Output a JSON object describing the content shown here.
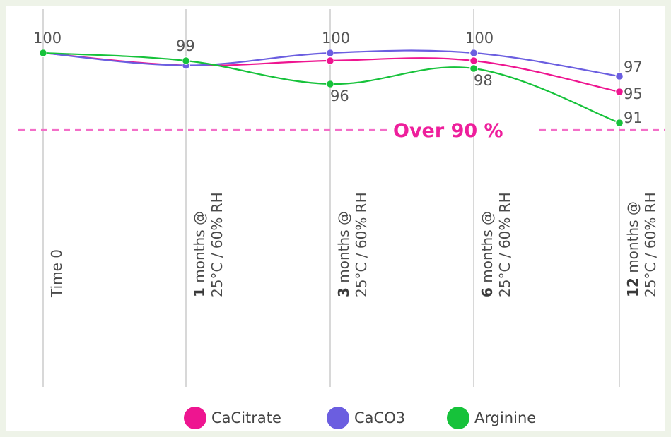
{
  "chart_data": {
    "type": "line",
    "categories": [
      {
        "bold": "",
        "line1": "Time 0",
        "line2": ""
      },
      {
        "bold": "1",
        "line1": " months @",
        "line2": "25°C / 60% RH"
      },
      {
        "bold": "3",
        "line1": " months @",
        "line2": "25°C / 60% RH"
      },
      {
        "bold": "6",
        "line1": " months @",
        "line2": "25°C / 60% RH"
      },
      {
        "bold": "12",
        "line1": " months @",
        "line2": "25°C / 60% RH"
      }
    ],
    "series": [
      {
        "name": "CaCitrate",
        "color": "#ee1590",
        "values": [
          100,
          98.4,
          99,
          99,
          95
        ]
      },
      {
        "name": "CaCO3",
        "color": "#6b5ee0",
        "values": [
          100,
          98.4,
          100,
          100,
          97
        ]
      },
      {
        "name": "Arginine",
        "color": "#16c23a",
        "values": [
          100,
          99,
          96,
          98,
          91
        ]
      }
    ],
    "data_labels": [
      {
        "text": "100",
        "series": "Arginine",
        "index": 0
      },
      {
        "text": "99",
        "series": "Arginine",
        "index": 1
      },
      {
        "text": "100",
        "series": "CaCO3",
        "index": 2
      },
      {
        "text": "96",
        "series": "Arginine",
        "index": 2
      },
      {
        "text": "100",
        "series": "CaCO3",
        "index": 3
      },
      {
        "text": "98",
        "series": "Arginine",
        "index": 3
      },
      {
        "text": "97",
        "series": "CaCO3",
        "index": 4
      },
      {
        "text": "95",
        "series": "CaCitrate",
        "index": 4
      },
      {
        "text": "91",
        "series": "Arginine",
        "index": 4
      }
    ],
    "threshold": {
      "value": 90,
      "label": "Over 90 %",
      "color": "#ee1f9c"
    },
    "ylim": [
      79,
      101.5
    ],
    "grid": "vertical lines at each category",
    "legend_position": "bottom-center"
  }
}
